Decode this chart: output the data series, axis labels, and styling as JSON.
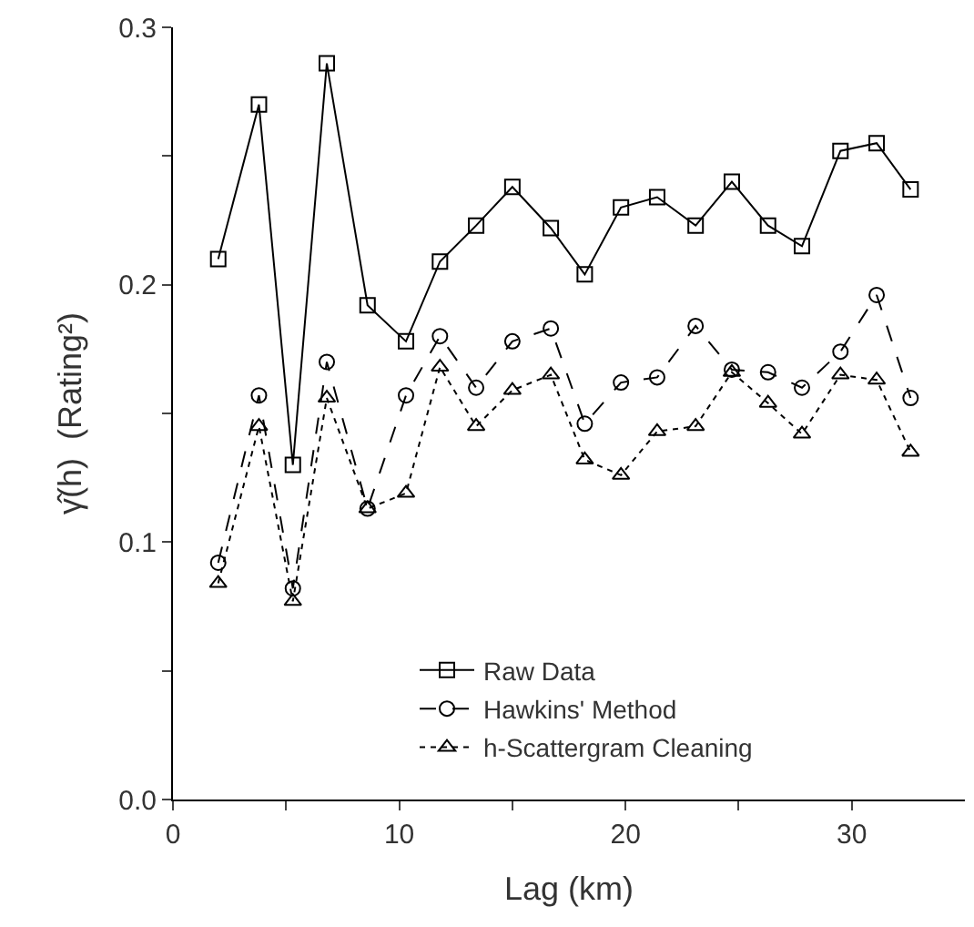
{
  "chart_data": {
    "type": "line",
    "xlabel": "Lag (km)",
    "ylabel": "γ̂(h)  (Rating²)",
    "x": [
      2.0,
      3.8,
      5.3,
      6.8,
      8.6,
      10.3,
      11.8,
      13.4,
      15.0,
      16.7,
      18.2,
      19.8,
      21.4,
      23.1,
      24.7,
      26.3,
      27.8,
      29.5,
      31.1,
      32.6
    ],
    "series": [
      {
        "name": "Raw Data",
        "color": "#000000",
        "marker": "square",
        "line_style": "solid",
        "values": [
          0.21,
          0.27,
          0.13,
          0.286,
          0.192,
          0.178,
          0.209,
          0.223,
          0.238,
          0.222,
          0.204,
          0.23,
          0.234,
          0.223,
          0.24,
          0.223,
          0.215,
          0.252,
          0.255,
          0.237
        ]
      },
      {
        "name": "Hawkins' Method",
        "color": "#000000",
        "marker": "circle",
        "line_style": "dashed",
        "values": [
          0.092,
          0.157,
          0.082,
          0.17,
          0.113,
          0.157,
          0.18,
          0.16,
          0.178,
          0.183,
          0.146,
          0.162,
          0.164,
          0.184,
          0.167,
          0.166,
          0.16,
          0.174,
          0.196,
          0.156
        ]
      },
      {
        "name": "h-Scattergram Cleaning",
        "color": "#000000",
        "marker": "triangle",
        "line_style": "dotted",
        "values": [
          0.084,
          0.145,
          0.077,
          0.156,
          0.113,
          0.119,
          0.168,
          0.145,
          0.159,
          0.165,
          0.132,
          0.126,
          0.143,
          0.145,
          0.166,
          0.154,
          0.142,
          0.165,
          0.163,
          0.135
        ]
      }
    ],
    "xlim": [
      0,
      35
    ],
    "xticks": [
      0,
      {
        "value": 5,
        "label": null
      },
      10,
      {
        "value": 15,
        "label": null
      },
      20,
      {
        "value": 25,
        "label": null
      },
      30
    ],
    "ylim": [
      0,
      0.3
    ],
    "yticks": [
      {
        "value": 0,
        "label": "0.0"
      },
      {
        "value": 0.05,
        "label": null
      },
      0.1,
      {
        "value": 0.15,
        "label": null
      },
      0.2,
      {
        "value": 0.25,
        "label": null
      },
      0.3
    ],
    "legend": "bottom"
  }
}
